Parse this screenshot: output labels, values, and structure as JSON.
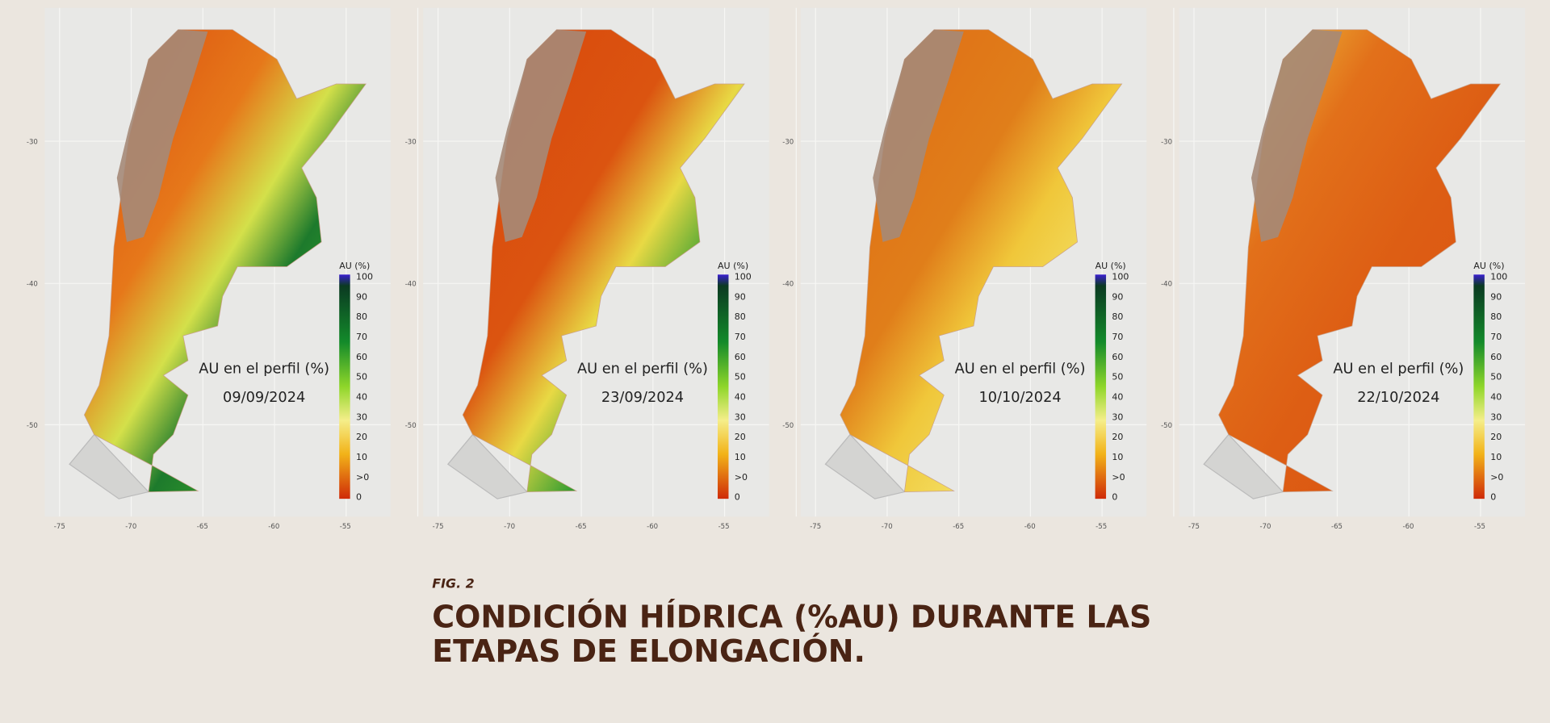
{
  "figure": {
    "label": "FIG. 2",
    "title_lines": [
      "CONDICIÓN HÍDRICA (%AU) DURANTE LAS",
      "ETAPAS DE ELONGACIÓN."
    ]
  },
  "lat_ticks": [
    "-30",
    "-40",
    "-50"
  ],
  "lon_ticks": [
    "-75",
    "-70",
    "-65",
    "-60",
    "-55"
  ],
  "legend_ticks": [
    "100",
    "90",
    "80",
    "70",
    "60",
    "50",
    "40",
    "30",
    "20",
    "10",
    ">0",
    "0"
  ],
  "panels": [
    {
      "legend_title": "AU (%)",
      "caption": "AU en el perfil (%)",
      "date": "09/09/2024"
    },
    {
      "legend_title": "AU (%)",
      "caption": "AU en el perfil (%)",
      "date": "23/09/2024"
    },
    {
      "legend_title": "AU (%)",
      "caption": "AU en el perfil (%)",
      "date": "10/10/2024"
    },
    {
      "legend_title": "AU (%)",
      "caption": "AU en el perfil (%)",
      "date": "22/10/2024"
    }
  ]
}
